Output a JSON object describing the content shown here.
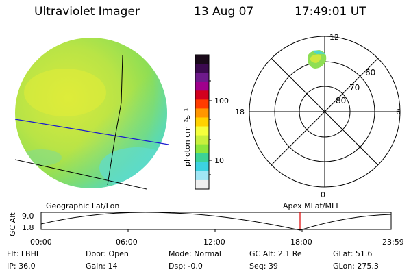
{
  "header": {
    "instrument": "Ultraviolet Imager",
    "date": "13 Aug 07",
    "time": "17:49:01 UT"
  },
  "colorbar": {
    "unit_label": "photon cm⁻²s⁻¹",
    "ticks": [
      "100",
      "10"
    ],
    "colors": [
      "#1a0a1a",
      "#3c0a50",
      "#6e1a8c",
      "#a0008c",
      "#d2001e",
      "#ff3c00",
      "#ff9600",
      "#ffd200",
      "#f5ff3c",
      "#c8f03c",
      "#8ce63c",
      "#3cd296",
      "#3cd2e1",
      "#a0e6f5",
      "#f0f0f0"
    ]
  },
  "polar": {
    "mlt_labels": {
      "top": "12",
      "left": "18",
      "right": "6",
      "bottom": "0"
    },
    "lat_labels": [
      "60",
      "70",
      "80"
    ]
  },
  "orbit": {
    "left_caption": "Geographic Lat/Lon",
    "right_caption": "Apex MLat/MLT",
    "yaxis_label": "GC Alt",
    "ytick_high": "9.0",
    "ytick_low": "1.8",
    "xticks": [
      "00:00",
      "06:00",
      "12:00",
      "18:00",
      "23:59"
    ],
    "marker_time": "17:49"
  },
  "info_rows": [
    {
      "flt": "Flt: LBHL",
      "door": "Door: Open",
      "mode": "Mode: Normal",
      "gcalt": "GC Alt: 2.1 Re",
      "glat": "GLat:  51.6"
    },
    {
      "ip": "IP: 36.0",
      "gain": "Gain: 14",
      "dsp": "Dsp:   -0.0",
      "seq": "Seq: 39",
      "glon": "GLon: 275.3"
    }
  ],
  "colors": {
    "disk_green": "#a6e04a",
    "disk_yellow": "#d9ea3c",
    "disk_cyan": "#4fd8c8",
    "geo_line_blue": "#1a1ad0",
    "marker_red": "#e00000"
  }
}
